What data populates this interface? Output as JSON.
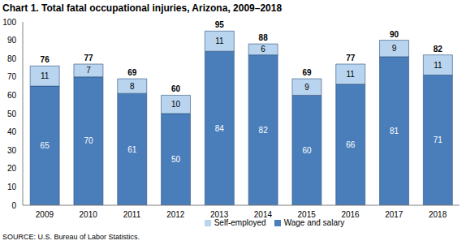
{
  "chart_data": {
    "type": "bar",
    "title": "Chart 1. Total fatal occupational injuries, Arizona, 2009–2018",
    "annotations": [
      "SOURCE: U.S. Bureau of Labor Statistics."
    ],
    "categories": [
      "2009",
      "2010",
      "2011",
      "2012",
      "2013",
      "2014",
      "2015",
      "2016",
      "2017",
      "2018"
    ],
    "series": [
      {
        "name": "Wage and salary",
        "color": "#4a7ebb",
        "values": [
          65,
          70,
          61,
          50,
          84,
          82,
          60,
          66,
          81,
          71
        ]
      },
      {
        "name": "Self-employed",
        "color": "#b9d4ee",
        "values": [
          11,
          7,
          8,
          10,
          11,
          6,
          9,
          11,
          9,
          11
        ]
      }
    ],
    "totals": [
      76,
      77,
      69,
      60,
      95,
      88,
      69,
      77,
      90,
      82
    ],
    "ylim": [
      0,
      100
    ],
    "yticks": [
      0,
      10,
      20,
      30,
      40,
      50,
      60,
      70,
      80,
      90,
      100
    ],
    "stacked": true,
    "data_labels": true,
    "grid": false,
    "legend": "bottom"
  }
}
